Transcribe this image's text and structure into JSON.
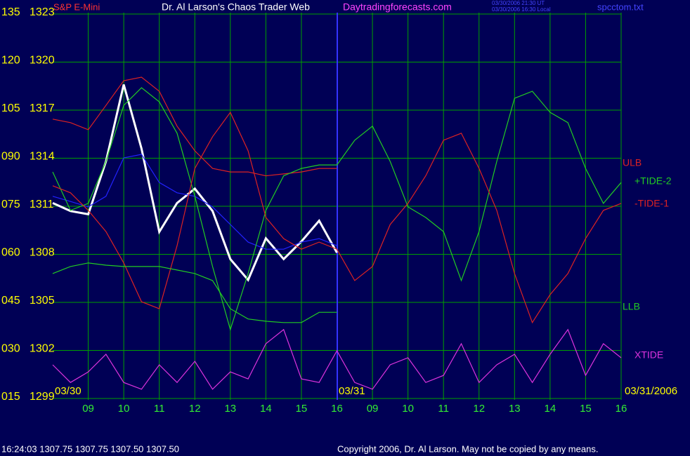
{
  "chart_data": {
    "type": "line",
    "title": "Dr. Al Larson's Chaos Trader Web",
    "website": "Daytradingforecasts.com",
    "timestamp_lines": [
      "03/30/2006 21:30 UT",
      "03/30/2006 16:30 Local"
    ],
    "file": "spcctom.txt",
    "date_labels": [
      "03/30",
      "03/31",
      "03/31/2006"
    ],
    "status": "16:24:03  1307.75 1307.75 1307.50 1307.50",
    "copyright": "Copyright 2006, Dr. Al Larson. May not be copied by any means.",
    "grid": true,
    "x": [
      0,
      0.5,
      1,
      1.5,
      2,
      2.5,
      3,
      3.5,
      4,
      4.5,
      5,
      5.5,
      6,
      6.5,
      7,
      7.5,
      8,
      8.5,
      9,
      9.5,
      10,
      10.5,
      11,
      11.5,
      12,
      12.5,
      13,
      13.5,
      14,
      14.5,
      15,
      15.5,
      16
    ],
    "xlim": [
      0,
      16
    ],
    "xticks": [
      {
        "value": 1,
        "label": "09"
      },
      {
        "value": 2,
        "label": "10"
      },
      {
        "value": 3,
        "label": "11"
      },
      {
        "value": 4,
        "label": "12"
      },
      {
        "value": 5,
        "label": "13"
      },
      {
        "value": 6,
        "label": "14"
      },
      {
        "value": 7,
        "label": "15"
      },
      {
        "value": 8,
        "label": "16"
      },
      {
        "value": 9,
        "label": "09"
      },
      {
        "value": 10,
        "label": "10"
      },
      {
        "value": 11,
        "label": "11"
      },
      {
        "value": 12,
        "label": "12"
      },
      {
        "value": 13,
        "label": "13"
      },
      {
        "value": 14,
        "label": "14"
      },
      {
        "value": 15,
        "label": "15"
      },
      {
        "value": 16,
        "label": "16"
      }
    ],
    "ylim": [
      15,
      135
    ],
    "yticks": [
      {
        "value": 15,
        "label": "015"
      },
      {
        "value": 30,
        "label": "030"
      },
      {
        "value": 45,
        "label": "045"
      },
      {
        "value": 60,
        "label": "060"
      },
      {
        "value": 75,
        "label": "075"
      },
      {
        "value": 90,
        "label": "090"
      },
      105,
      120,
      135
    ],
    "y2lim": [
      1299,
      1323
    ],
    "y2ticks": [
      1299,
      1302,
      1305,
      1308,
      1311,
      1314,
      1317,
      1320,
      1323
    ],
    "series": [
      {
        "name": "S&P E-Mini",
        "color": "#ffffff",
        "axis": "y2",
        "values": [
          1311.2,
          1310.7,
          1310.5,
          1313.8,
          1318.6,
          1314.6,
          1309.4,
          1311.2,
          1312.1,
          1310.7,
          1307.7,
          1306.4,
          1309.0,
          1307.7,
          1308.8,
          1310.1,
          1308.1,
          null,
          null,
          null,
          null,
          null,
          null,
          null,
          null,
          null,
          null,
          null,
          null,
          null,
          null,
          null,
          null
        ]
      },
      {
        "color": "#2222ff",
        "values": [
          78.1,
          76.5,
          74.8,
          78.1,
          90.1,
          91.2,
          82.4,
          79.2,
          78.1,
          74.8,
          69.3,
          63.8,
          61.6,
          61.6,
          63.8,
          64.9,
          62.7,
          null,
          null,
          null,
          null,
          null,
          null,
          null,
          null,
          null,
          null,
          null,
          null,
          null,
          null,
          null,
          null
        ]
      },
      {
        "name": "ULB",
        "color": "#dd2222",
        "values": [
          102.2,
          101.1,
          98.9,
          106.5,
          114.2,
          115.3,
          110.9,
          100.0,
          92.3,
          86.8,
          85.7,
          85.7,
          84.5,
          85.1,
          85.7,
          86.8,
          86.8,
          null,
          null,
          null,
          null,
          null,
          null,
          null,
          null,
          null,
          null,
          null,
          null,
          null,
          null,
          null,
          null
        ]
      },
      {
        "name": "+TIDE-2",
        "color": "#22cc22",
        "values": [
          85.7,
          73.7,
          75.9,
          89.0,
          106.5,
          112.0,
          107.6,
          97.8,
          78.1,
          56.2,
          36.5,
          54.0,
          73.7,
          84.5,
          86.8,
          87.9,
          87.9,
          95.6,
          100.0,
          89.0,
          74.8,
          71.5,
          67.1,
          51.8,
          67.1,
          89.0,
          108.7,
          110.9,
          104.3,
          101.1,
          86.8,
          75.9,
          82.4
        ]
      },
      {
        "name": "-TIDE-1",
        "color": "#dd2222",
        "values": [
          81.4,
          79.2,
          73.7,
          67.1,
          57.3,
          45.2,
          43.0,
          62.7,
          86.8,
          96.7,
          104.3,
          92.3,
          71.5,
          64.9,
          61.6,
          63.8,
          61.6,
          51.8,
          56.2,
          69.3,
          75.9,
          84.5,
          95.6,
          97.8,
          86.8,
          73.7,
          54.0,
          38.7,
          47.4,
          54.0,
          64.9,
          73.7,
          75.9
        ]
      },
      {
        "name": "LLB",
        "color": "#22cc22",
        "values": [
          54.0,
          56.2,
          57.3,
          56.6,
          56.2,
          56.2,
          56.2,
          55.1,
          54.0,
          51.8,
          43.0,
          39.8,
          39.1,
          38.7,
          38.7,
          41.9,
          41.9,
          null,
          null,
          null,
          null,
          null,
          null,
          null,
          null,
          null,
          null,
          null,
          null,
          null,
          null,
          null,
          null
        ]
      },
      {
        "name": "XTIDE",
        "color": "#dd33dd",
        "values": [
          25.5,
          20.0,
          23.3,
          28.8,
          20.0,
          17.9,
          25.5,
          20.0,
          26.6,
          17.9,
          23.3,
          21.1,
          32.1,
          36.5,
          21.1,
          20.0,
          29.9,
          20.0,
          17.9,
          25.5,
          27.7,
          20.0,
          22.2,
          32.1,
          20.0,
          25.5,
          28.8,
          20.0,
          28.8,
          36.5,
          22.2,
          32.1,
          27.7
        ]
      }
    ]
  }
}
